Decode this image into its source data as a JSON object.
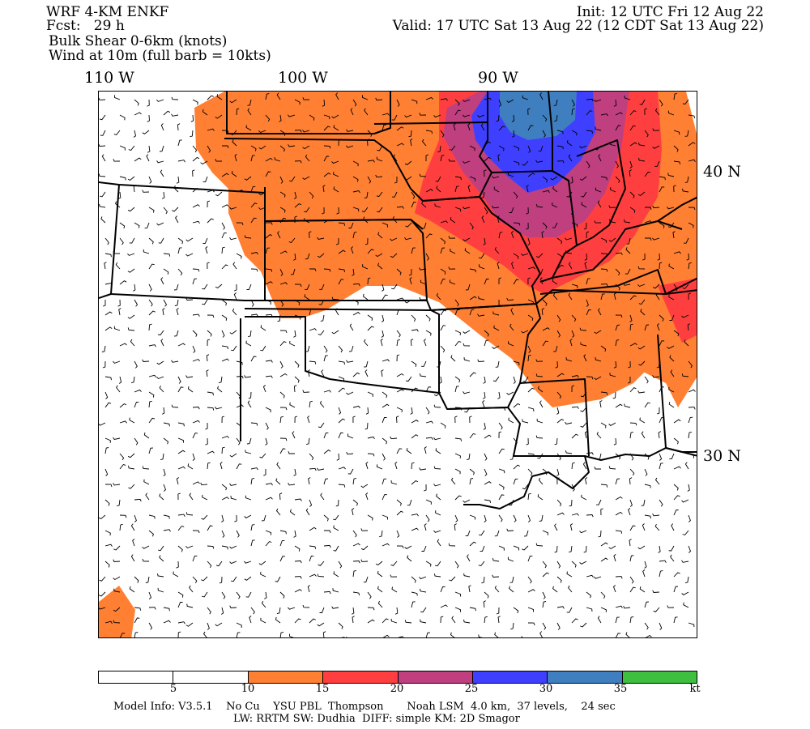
{
  "header": {
    "model": "WRF 4-KM ENKF",
    "fcst": "Fcst:   29 h",
    "field": "Bulk Shear 0-6km (knots)",
    "wind": "Wind at 10m (full barb = 10kts)",
    "init": "Init: 12 UTC Fri 12 Aug 22",
    "valid": "Valid: 17 UTC Sat 13 Aug 22 (12 CDT Sat 13 Aug 22)"
  },
  "longitude_labels": [
    "110 W",
    "100 W",
    "90 W"
  ],
  "latitude_labels": [
    "40 N",
    "30 N"
  ],
  "colorbar": {
    "colors": [
      "#ffffff",
      "#ffffff",
      "#ff7f33",
      "#ff3f3f",
      "#bf3f7f",
      "#3f3fff",
      "#3f7fbf",
      "#3fbf3f"
    ],
    "ticks": [
      "5",
      "10",
      "15",
      "20",
      "25",
      "30",
      "35"
    ],
    "unit": "kt"
  },
  "footer": {
    "line1": "Model Info: V3.5.1    No Cu    YSU PBL  Thompson       Noah LSM  4.0 km,  37 levels,    24 sec",
    "line2": "LW: RRTM SW: Dudhia  DIFF: simple KM: 2D Smagor"
  }
}
